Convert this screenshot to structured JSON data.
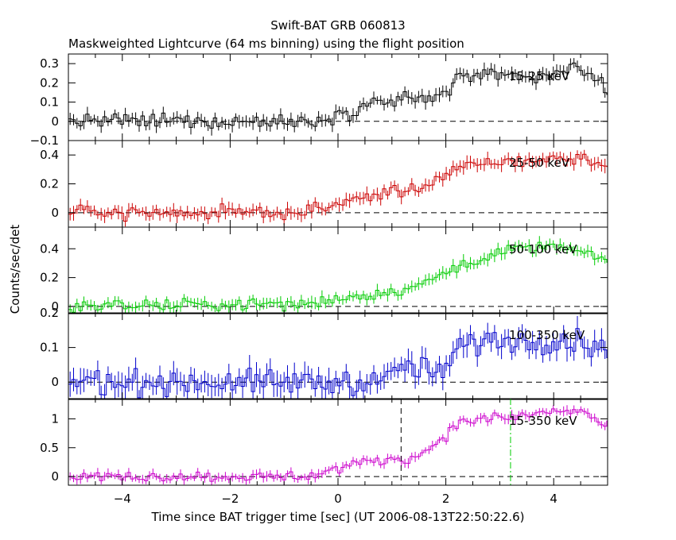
{
  "title": "Swift-BAT GRB 060813",
  "subtitle": "Maskweighted Lightcurve (64 ms binning) using the flight position",
  "ylabel": "Counts/sec/det",
  "xlabel": "Time since BAT trigger time [sec] (UT 2006-08-13T22:50:22.6)",
  "xlim": [
    -5,
    5
  ],
  "x_ticks": [
    -4,
    -2,
    0,
    2,
    4
  ],
  "chart_data": [
    {
      "type": "line",
      "band_label": "15-25 keV",
      "color": "#000000",
      "ylim": [
        -0.1,
        0.35
      ],
      "y_ticks": [
        -0.1,
        0,
        0.1,
        0.2,
        0.3
      ],
      "y_tick_labels": [
        "−0.1",
        "0",
        "0.1",
        "0.2",
        "0.3"
      ],
      "shape": [
        [
          -5,
          0.0
        ],
        [
          -0.5,
          0.0
        ],
        [
          0.6,
          0.09
        ],
        [
          1.8,
          0.13
        ],
        [
          2.4,
          0.24
        ],
        [
          3.5,
          0.22
        ],
        [
          4.5,
          0.28
        ],
        [
          5,
          0.17
        ]
      ],
      "noise": 0.028,
      "err": 0.03
    },
    {
      "type": "line",
      "band_label": "25-50 keV",
      "color": "#cc0000",
      "ylim": [
        -0.1,
        0.5
      ],
      "y_ticks": [
        0,
        0.2,
        0.4
      ],
      "y_tick_labels": [
        "0",
        "0.2",
        "0.4"
      ],
      "shape": [
        [
          -5,
          0.0
        ],
        [
          -0.6,
          0.0
        ],
        [
          0.6,
          0.12
        ],
        [
          1.5,
          0.17
        ],
        [
          2.4,
          0.33
        ],
        [
          3.5,
          0.36
        ],
        [
          4.5,
          0.38
        ],
        [
          5,
          0.32
        ]
      ],
      "noise": 0.03,
      "err": 0.04
    },
    {
      "type": "line",
      "band_label": "50-100 keV",
      "color": "#00cc00",
      "ylim": [
        -0.05,
        0.55
      ],
      "y_ticks": [
        0,
        0.2,
        0.4
      ],
      "y_tick_labels": [
        "0",
        "0.2",
        "0.4"
      ],
      "shape": [
        [
          -5,
          0.0
        ],
        [
          -0.6,
          0.02
        ],
        [
          0.6,
          0.08
        ],
        [
          1.5,
          0.14
        ],
        [
          2.2,
          0.28
        ],
        [
          3.0,
          0.38
        ],
        [
          4.0,
          0.42
        ],
        [
          5,
          0.32
        ]
      ],
      "noise": 0.028,
      "err": 0.035
    },
    {
      "type": "line",
      "band_label": "100-350 keV",
      "color": "#0000cc",
      "ylim": [
        -0.05,
        0.2
      ],
      "y_ticks": [
        0,
        0.1,
        0.2
      ],
      "y_tick_labels": [
        "0",
        "0.1",
        "0.2"
      ],
      "shape": [
        [
          -5,
          0.0
        ],
        [
          0.8,
          0.0
        ],
        [
          1.3,
          0.05
        ],
        [
          1.9,
          0.02
        ],
        [
          2.3,
          0.11
        ],
        [
          3.5,
          0.12
        ],
        [
          4.5,
          0.12
        ],
        [
          5,
          0.09
        ]
      ],
      "noise": 0.025,
      "err": 0.03
    },
    {
      "type": "line",
      "band_label": "15-350 keV",
      "color": "#cc00cc",
      "ylim": [
        -0.15,
        1.35
      ],
      "y_ticks": [
        0,
        0.5,
        1
      ],
      "y_tick_labels": [
        "0",
        "0.5",
        "1"
      ],
      "shape": [
        [
          -5,
          0.0
        ],
        [
          -0.6,
          0.0
        ],
        [
          0.5,
          0.25
        ],
        [
          1.5,
          0.35
        ],
        [
          2.3,
          0.95
        ],
        [
          3.3,
          1.05
        ],
        [
          4.5,
          1.15
        ],
        [
          5,
          0.85
        ]
      ],
      "noise": 0.06,
      "err": 0.07,
      "markers": [
        {
          "x": 1.17,
          "color": "#000000",
          "style": "dashed"
        },
        {
          "x": 3.2,
          "color": "#00cc00",
          "style": "dashdot"
        }
      ]
    }
  ]
}
